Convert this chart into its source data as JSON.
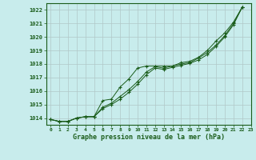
{
  "title": "Graphe pression niveau de la mer (hPa)",
  "background_color": "#c8ecec",
  "grid_color": "#b0c8c8",
  "line_color": "#1a5c1a",
  "xlim": [
    -0.5,
    23
  ],
  "ylim": [
    1013.5,
    1022.5
  ],
  "yticks": [
    1014,
    1015,
    1016,
    1017,
    1018,
    1019,
    1020,
    1021,
    1022
  ],
  "xticks": [
    0,
    1,
    2,
    3,
    4,
    5,
    6,
    7,
    8,
    9,
    10,
    11,
    12,
    13,
    14,
    15,
    16,
    17,
    18,
    19,
    20,
    21,
    22,
    23
  ],
  "series": [
    [
      1013.9,
      1013.75,
      1013.75,
      1014.0,
      1014.1,
      1014.1,
      1015.3,
      1015.4,
      1016.3,
      1016.9,
      1017.7,
      1017.85,
      1017.85,
      1017.85,
      1017.85,
      1018.1,
      1018.2,
      1018.5,
      1019.0,
      1019.7,
      1020.3,
      1021.1,
      1022.2
    ],
    [
      1013.9,
      1013.75,
      1013.75,
      1014.0,
      1014.1,
      1014.1,
      1014.8,
      1015.1,
      1015.6,
      1016.1,
      1016.7,
      1017.4,
      1017.8,
      1017.7,
      1017.85,
      1018.0,
      1018.1,
      1018.45,
      1018.85,
      1019.4,
      1020.1,
      1021.0,
      1022.2
    ],
    [
      1013.9,
      1013.75,
      1013.75,
      1014.0,
      1014.1,
      1014.1,
      1014.7,
      1015.0,
      1015.4,
      1015.9,
      1016.5,
      1017.2,
      1017.7,
      1017.6,
      1017.75,
      1017.9,
      1018.05,
      1018.3,
      1018.7,
      1019.3,
      1020.0,
      1020.9,
      1022.2
    ]
  ],
  "x_series": [
    0,
    1,
    2,
    3,
    4,
    5,
    6,
    7,
    8,
    9,
    10,
    11,
    12,
    13,
    14,
    15,
    16,
    17,
    18,
    19,
    20,
    21,
    22
  ]
}
